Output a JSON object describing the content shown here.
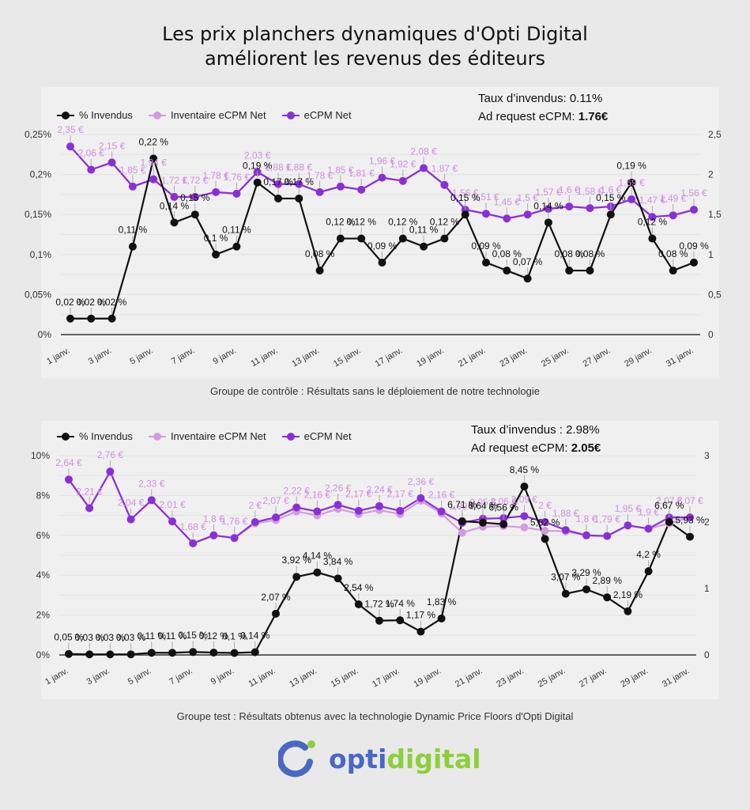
{
  "title_line1": "Les prix planchers dynamiques d'Opti Digital",
  "title_line2": "améliorent les revenus des éditeurs",
  "colors": {
    "invendus": "#111111",
    "inventaire": "#d39be0",
    "ecpm": "#8a2fd6",
    "label_ecpm": "#cf8fe0",
    "logo_blue": "#4a67c4",
    "logo_green": "#8ccf3a"
  },
  "legend": {
    "invendus": "% Invendus",
    "inventaire": "Inventaire eCPM Net",
    "ecpm": "eCPM Net"
  },
  "panel1": {
    "stat1_label": "Taux d’invendus: ",
    "stat1_value": "0.11%",
    "stat2_label": "Ad request eCPM: ",
    "stat2_value": "1.76€",
    "caption": "Groupe de contrôle : Résultats sans le déploiement de notre technologie"
  },
  "panel2": {
    "stat1_label": "Taux d’invendus : ",
    "stat1_value": "2.98%",
    "stat2_label": "Ad request eCPM: ",
    "stat2_value": "2.05€",
    "caption": "Groupe test : Résultats obtenus avec la technologie Dynamic Price Floors d'Opti Digital"
  },
  "logo": {
    "part1": "opti",
    "part2": "digital"
  },
  "chart_data": [
    {
      "type": "line",
      "title": "Groupe de contrôle",
      "x": [
        "1 janv.",
        "2 janv.",
        "3 janv.",
        "4 janv.",
        "5 janv.",
        "6 janv.",
        "7 janv.",
        "8 janv.",
        "9 janv.",
        "10 janv.",
        "11 janv.",
        "12 janv.",
        "13 janv.",
        "14 janv.",
        "15 janv.",
        "16 janv.",
        "17 janv.",
        "18 janv.",
        "19 janv.",
        "20 janv.",
        "21 janv.",
        "22 janv.",
        "23 janv.",
        "24 janv.",
        "25 janv.",
        "26 janv.",
        "27 janv.",
        "28 janv.",
        "29 janv.",
        "30 janv.",
        "31 janv."
      ],
      "x_tick_labels": [
        "1 janv.",
        "3 janv.",
        "5 janv.",
        "7 janv.",
        "9 janv.",
        "11 janv.",
        "13 janv.",
        "15 janv.",
        "17 janv.",
        "19 janv.",
        "21 janv.",
        "23 janv.",
        "25 janv.",
        "27 janv.",
        "29 janv.",
        "31 janv."
      ],
      "y_left": {
        "ticks": [
          "0%",
          "0,05%",
          "0,1%",
          "0,15%",
          "0,2%",
          "0,25%"
        ],
        "range": [
          0,
          0.25
        ]
      },
      "y_right": {
        "ticks": [
          "0",
          "0,5",
          "1",
          "1,5",
          "2",
          "2,5"
        ],
        "range": [
          0,
          2.5
        ]
      },
      "grid": true,
      "legend_position": "top-left",
      "series": [
        {
          "name": "% Invendus",
          "axis": "left",
          "unit": "%",
          "values": [
            0.02,
            0.02,
            0.02,
            0.11,
            0.22,
            0.14,
            0.15,
            0.1,
            0.11,
            0.19,
            0.17,
            0.17,
            0.08,
            0.12,
            0.12,
            0.09,
            0.12,
            0.11,
            0.12,
            0.15,
            0.09,
            0.08,
            0.07,
            0.14,
            0.08,
            0.08,
            0.15,
            0.19,
            0.12,
            0.08,
            0.09
          ]
        },
        {
          "name": "Inventaire eCPM Net",
          "axis": "right",
          "unit": "€",
          "values": [
            2.35,
            2.06,
            2.15,
            1.85,
            1.94,
            1.72,
            1.72,
            1.78,
            1.76,
            2.03,
            1.88,
            1.88,
            1.78,
            1.85,
            1.81,
            1.96,
            1.92,
            2.08,
            1.87,
            1.56,
            1.51,
            1.45,
            1.5,
            1.57,
            1.6,
            1.58,
            1.6,
            1.69,
            1.47,
            1.49,
            1.56
          ]
        },
        {
          "name": "eCPM Net",
          "axis": "right",
          "unit": "€",
          "values": [
            2.35,
            2.06,
            2.15,
            1.85,
            1.94,
            1.72,
            1.72,
            1.78,
            1.76,
            2.03,
            1.88,
            1.88,
            1.78,
            1.85,
            1.81,
            1.96,
            1.92,
            2.08,
            1.87,
            1.56,
            1.51,
            1.45,
            1.5,
            1.57,
            1.6,
            1.58,
            1.6,
            1.69,
            1.47,
            1.49,
            1.56
          ]
        }
      ]
    },
    {
      "type": "line",
      "title": "Groupe test",
      "x": [
        "1 janv.",
        "2 janv.",
        "3 janv.",
        "4 janv.",
        "5 janv.",
        "6 janv.",
        "7 janv.",
        "8 janv.",
        "9 janv.",
        "10 janv.",
        "11 janv.",
        "12 janv.",
        "13 janv.",
        "14 janv.",
        "15 janv.",
        "16 janv.",
        "17 janv.",
        "18 janv.",
        "19 janv.",
        "20 janv.",
        "21 janv.",
        "22 janv.",
        "23 janv.",
        "24 janv.",
        "25 janv.",
        "26 janv.",
        "27 janv.",
        "28 janv.",
        "29 janv.",
        "30 janv.",
        "31 janv."
      ],
      "x_tick_labels": [
        "1 janv.",
        "3 janv.",
        "5 janv.",
        "7 janv.",
        "9 janv.",
        "11 janv.",
        "13 janv.",
        "15 janv.",
        "17 janv.",
        "19 janv.",
        "21 janv.",
        "23 janv.",
        "25 janv.",
        "27 janv.",
        "29 janv.",
        "31 janv."
      ],
      "y_left": {
        "ticks": [
          "0%",
          "2%",
          "4%",
          "6%",
          "8%",
          "10%"
        ],
        "range": [
          0,
          10
        ]
      },
      "y_right": {
        "ticks": [
          "0",
          "1",
          "2",
          "3"
        ],
        "range": [
          0,
          3
        ]
      },
      "grid": true,
      "legend_position": "top-left",
      "series": [
        {
          "name": "% Invendus",
          "axis": "left",
          "unit": "%",
          "values": [
            0.05,
            0.03,
            0.03,
            0.03,
            0.11,
            0.11,
            0.15,
            0.12,
            0.1,
            0.14,
            2.07,
            3.92,
            4.14,
            3.84,
            2.54,
            1.72,
            1.74,
            1.17,
            1.83,
            6.71,
            6.64,
            6.56,
            8.45,
            5.82,
            3.07,
            3.29,
            2.89,
            2.19,
            4.2,
            6.67,
            5.93
          ]
        },
        {
          "name": "Inventaire eCPM Net",
          "axis": "right",
          "unit": "€",
          "values": [
            2.64,
            2.21,
            2.76,
            2.04,
            2.33,
            2.01,
            1.68,
            1.8,
            1.76,
            1.98,
            2.03,
            2.16,
            2.1,
            2.2,
            2.12,
            2.18,
            2.12,
            2.32,
            2.13,
            1.84,
            1.93,
            1.94,
            1.92,
            1.87,
            1.86,
            1.8,
            1.79,
            1.95,
            1.9,
            1.98,
            2.07
          ]
        },
        {
          "name": "eCPM Net",
          "axis": "right",
          "unit": "€",
          "values": [
            2.64,
            2.21,
            2.76,
            2.04,
            2.33,
            2.01,
            1.68,
            1.8,
            1.76,
            2,
            2.07,
            2.22,
            2.16,
            2.26,
            2.17,
            2.24,
            2.17,
            2.36,
            2.16,
            1.99,
            2.05,
            2.06,
            2.09,
            2.0,
            1.88,
            1.8,
            1.79,
            1.95,
            1.9,
            2.07,
            2.07
          ]
        }
      ]
    }
  ]
}
